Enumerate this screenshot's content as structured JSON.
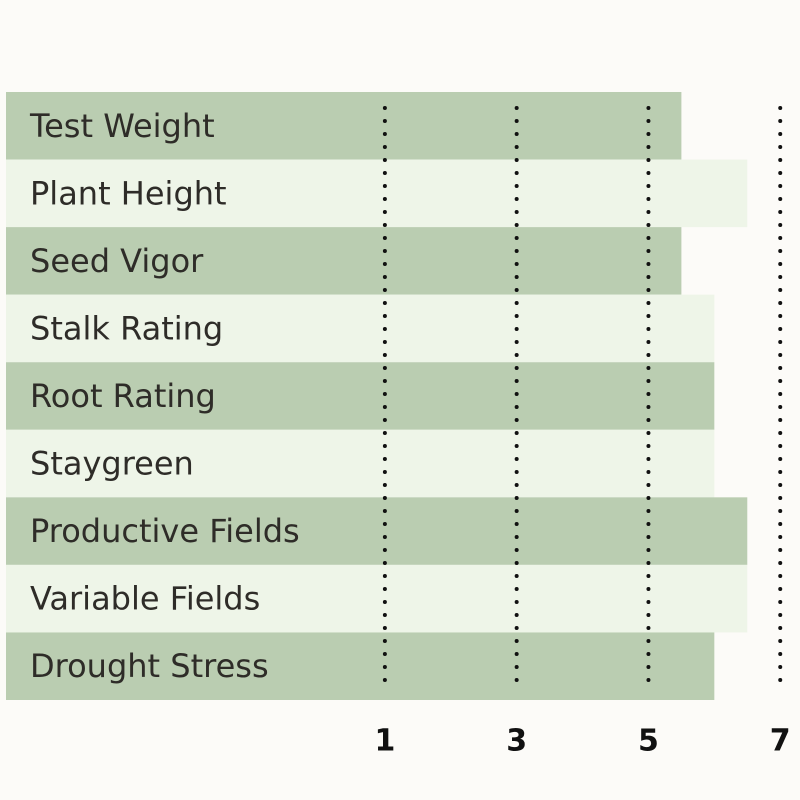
{
  "chart_data": {
    "type": "hbar",
    "categories": [
      "Test Weight",
      "Plant Height",
      "Seed Vigor",
      "Stalk Rating",
      "Root Rating",
      "Staygreen",
      "Productive Fields",
      "Variable Fields",
      "Drought Stress"
    ],
    "values": [
      5.5,
      6.5,
      5.5,
      6,
      6,
      6,
      6.5,
      6.5,
      6
    ],
    "colors": [
      "#bacdb1",
      "#eef5e8",
      "#bacdb1",
      "#eef5e8",
      "#bacdb1",
      "#eef5e8",
      "#bacdb1",
      "#eef5e8",
      "#bacdb1"
    ],
    "xlim": [
      -4.75,
      7.3
    ],
    "xticks": [
      1,
      3,
      5,
      7
    ],
    "grid": true
  }
}
